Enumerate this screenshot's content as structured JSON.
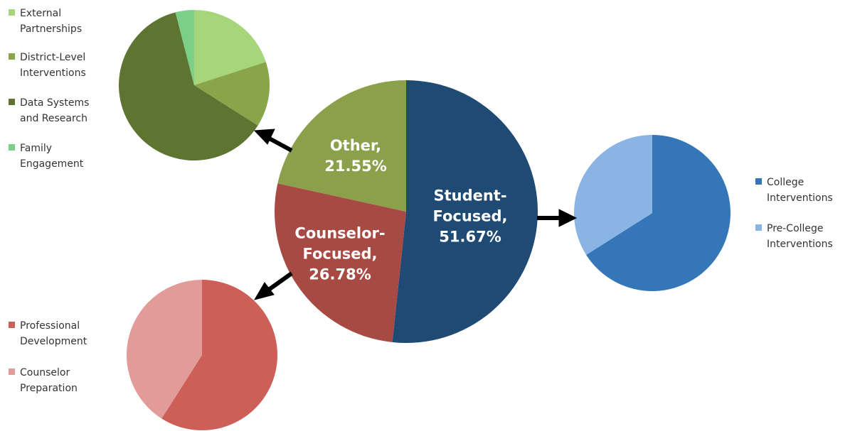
{
  "chart_data": [
    {
      "type": "pie",
      "categories": [
        "Student-Focused,",
        "Counselor-Focused,",
        "Other,"
      ],
      "values": [
        51.67,
        26.78,
        21.55
      ],
      "value_labels": [
        "51.67%",
        "26.78%",
        "21.55%"
      ],
      "colors": [
        "#1f4a73",
        "#a84a44",
        "#8aa04a"
      ]
    },
    {
      "type": "pie",
      "categories": [
        "External Partnerships",
        "District-Level Interventions",
        "Data Systems and Research",
        "Family Engagement"
      ],
      "values": [
        20,
        14,
        62,
        4
      ],
      "colors": [
        "#a7d67a",
        "#89a54a",
        "#5e7431",
        "#7ccf86"
      ],
      "legend": "left"
    },
    {
      "type": "pie",
      "categories": [
        "College Interventions",
        "Pre-College Interventions"
      ],
      "values": [
        66,
        34
      ],
      "colors": [
        "#3476b8",
        "#8ab4e3"
      ],
      "legend": "right"
    },
    {
      "type": "pie",
      "categories": [
        "Professional Development",
        "Counselor Preparation"
      ],
      "values": [
        59,
        41
      ],
      "colors": [
        "#cd5e58",
        "#e19b98"
      ],
      "legend": "left"
    }
  ]
}
